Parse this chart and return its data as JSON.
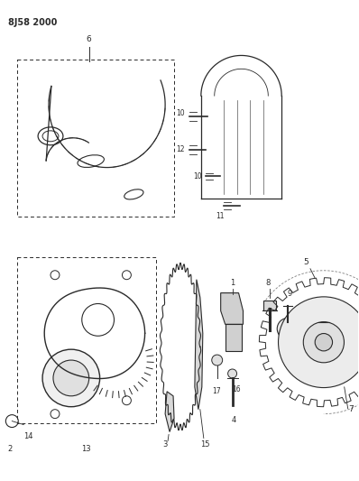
{
  "title": "8J58 2000",
  "bg_color": "#ffffff",
  "line_color": "#2a2a2a",
  "fig_width": 3.98,
  "fig_height": 5.33,
  "dpi": 100
}
